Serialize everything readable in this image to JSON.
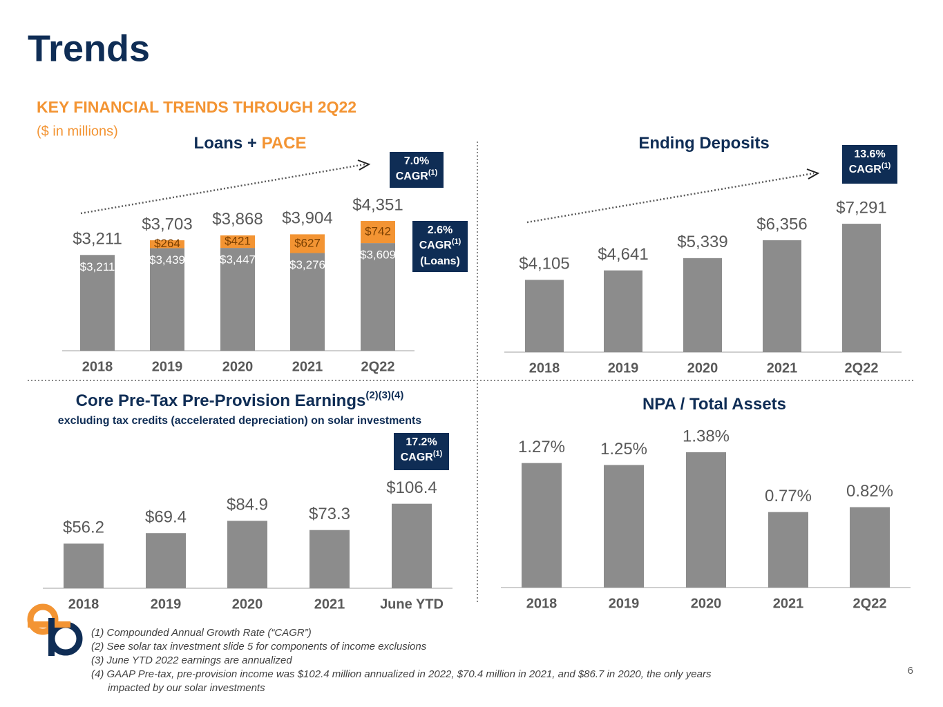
{
  "title": "Trends",
  "subtitle": "KEY FINANCIAL TRENDS THROUGH 2Q22",
  "units": "($ in millions)",
  "page_number": "6",
  "footnotes": [
    "(1) Compounded Annual Growth Rate (“CAGR”)",
    "(2) See solar tax investment slide 5 for components of income exclusions",
    "(3) June YTD 2022 earnings are annualized",
    "(4) GAAP Pre-tax, pre-provision income was $102.4 million annualized in 2022, $70.4 million in 2021, and $86.7 in 2020, the only years",
    "impacted by our solar investments"
  ],
  "chart_data": [
    {
      "type": "stacked_bar",
      "title": "Loans +",
      "title_highlight": "PACE",
      "categories": [
        "2018",
        "2019",
        "2020",
        "2021",
        "2Q22"
      ],
      "series": [
        {
          "name": "Loans",
          "color": "#8c8c8c",
          "values": [
            3211,
            3439,
            3447,
            3276,
            3609
          ],
          "value_labels": [
            "$3,211",
            "$3,439",
            "$3,447",
            "$3,276",
            "$3,609"
          ]
        },
        {
          "name": "PACE",
          "color": "#f39433",
          "values": [
            null,
            264,
            421,
            627,
            742
          ],
          "value_labels": [
            null,
            "$264",
            "$421",
            "$627",
            "$742"
          ]
        }
      ],
      "totals": [
        3211,
        3703,
        3868,
        3904,
        4351
      ],
      "total_labels": [
        "$3,211",
        "$3,703",
        "$3,868",
        "$3,904",
        "$4,351"
      ],
      "ylim": [
        0,
        5000
      ],
      "badges": [
        {
          "value": "7.0%",
          "label": "CAGR",
          "sup": "(1)"
        },
        {
          "value": "2.6%",
          "label": "CAGR",
          "sup": "(1)",
          "note": "(Loans)"
        }
      ]
    },
    {
      "type": "bar",
      "title": "Ending Deposits",
      "categories": [
        "2018",
        "2019",
        "2020",
        "2021",
        "2Q22"
      ],
      "values": [
        4105,
        4641,
        5339,
        6356,
        7291
      ],
      "value_labels": [
        "$4,105",
        "$4,641",
        "$5,339",
        "$6,356",
        "$7,291"
      ],
      "color": "#8c8c8c",
      "ylim": [
        0,
        8000
      ],
      "badges": [
        {
          "value": "13.6%",
          "label": "CAGR",
          "sup": "(1)"
        }
      ]
    },
    {
      "type": "bar",
      "title": "Core Pre-Tax Pre-Provision Earnings",
      "title_sup": "(2)(3)(4)",
      "subtitle": "excluding tax credits (accelerated depreciation) on solar investments",
      "categories": [
        "2018",
        "2019",
        "2020",
        "2021",
        "June YTD"
      ],
      "values": [
        56.2,
        69.4,
        84.9,
        73.3,
        106.4
      ],
      "value_labels": [
        "$56.2",
        "$69.4",
        "$84.9",
        "$73.3",
        "$106.4"
      ],
      "color": "#8c8c8c",
      "ylim": [
        0,
        120
      ],
      "badges": [
        {
          "value": "17.2%",
          "label": "CAGR",
          "sup": "(1)"
        }
      ]
    },
    {
      "type": "bar",
      "title": "NPA / Total Assets",
      "categories": [
        "2018",
        "2019",
        "2020",
        "2021",
        "2Q22"
      ],
      "values": [
        1.27,
        1.25,
        1.38,
        0.77,
        0.82
      ],
      "value_labels": [
        "1.27%",
        "1.25%",
        "1.38%",
        "0.77%",
        "0.82%"
      ],
      "color": "#8c8c8c",
      "ylim": [
        0,
        1.5
      ]
    }
  ]
}
